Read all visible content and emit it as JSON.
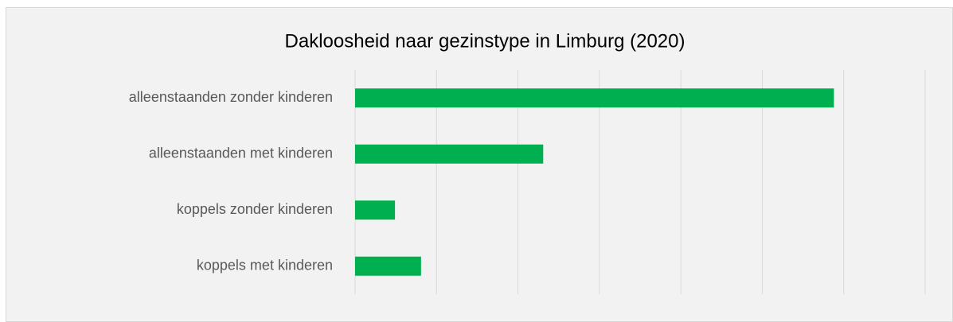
{
  "chart_data": {
    "type": "bar",
    "orientation": "horizontal",
    "title": "Dakloosheid naar gezinstype in Limburg (2020)",
    "categories": [
      "alleenstaanden zonder kinderen",
      "alleenstaanden met kinderen",
      "koppels zonder kinderen",
      "koppels met kinderen"
    ],
    "values": [
      5.88,
      2.31,
      0.49,
      0.81
    ],
    "color": "#00b050",
    "xlim": [
      0,
      7
    ],
    "xticks": [
      0,
      1,
      2,
      3,
      4,
      5,
      6,
      7
    ],
    "grid": true
  }
}
